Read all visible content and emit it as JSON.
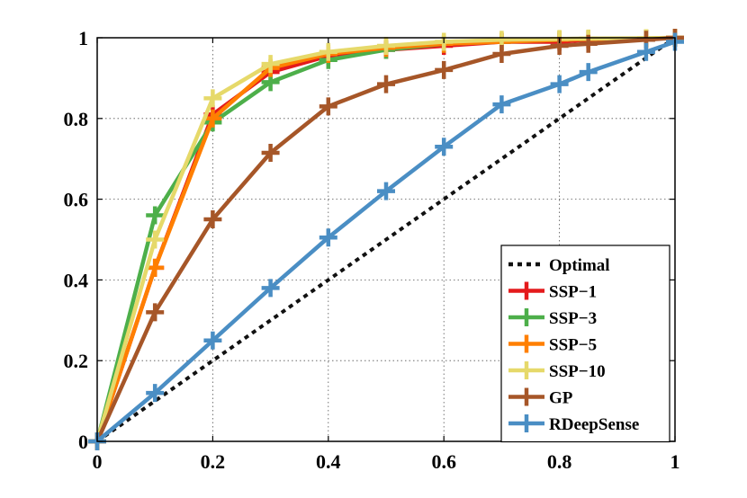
{
  "chart_data": {
    "type": "line",
    "title": "",
    "xlabel": "",
    "ylabel": "",
    "xlim": [
      0,
      1
    ],
    "ylim": [
      0,
      1
    ],
    "grid": true,
    "legend_position": "bottom-right",
    "x_ticks": [
      "0",
      "0.2",
      "0.4",
      "0.6",
      "0.8",
      "1"
    ],
    "y_ticks": [
      "0",
      "0.2",
      "0.4",
      "0.6",
      "0.8",
      "1"
    ],
    "x_tick_values": [
      0,
      0.2,
      0.4,
      0.6,
      0.8,
      1
    ],
    "y_tick_values": [
      0,
      0.2,
      0.4,
      0.6,
      0.8,
      1
    ],
    "series": [
      {
        "name": "Optimal",
        "color": "#111111",
        "style": "dotted",
        "marker": "none",
        "x": [
          0,
          1
        ],
        "y": [
          0,
          1
        ]
      },
      {
        "name": "SSP−1",
        "color": "#e41a1c",
        "style": "solid",
        "marker": "plus",
        "x": [
          0,
          0.1,
          0.2,
          0.3,
          0.4,
          0.5,
          0.6,
          0.7,
          0.8,
          0.85,
          0.95,
          1
        ],
        "y": [
          0,
          0.43,
          0.81,
          0.915,
          0.955,
          0.97,
          0.98,
          0.99,
          0.99,
          0.995,
          0.998,
          1
        ]
      },
      {
        "name": "SSP−3",
        "color": "#4daf4a",
        "style": "solid",
        "marker": "plus",
        "x": [
          0,
          0.1,
          0.2,
          0.3,
          0.4,
          0.5,
          0.6,
          0.7,
          0.8,
          0.85,
          0.95,
          1
        ],
        "y": [
          0,
          0.56,
          0.79,
          0.89,
          0.945,
          0.97,
          0.985,
          0.99,
          0.995,
          0.997,
          0.998,
          1
        ]
      },
      {
        "name": "SSP−5",
        "color": "#ff7f00",
        "style": "solid",
        "marker": "plus",
        "x": [
          0,
          0.1,
          0.2,
          0.3,
          0.4,
          0.5,
          0.6,
          0.7,
          0.8,
          0.85,
          0.95,
          1
        ],
        "y": [
          0,
          0.43,
          0.8,
          0.925,
          0.96,
          0.975,
          0.985,
          0.99,
          0.995,
          0.997,
          0.998,
          1
        ]
      },
      {
        "name": "SSP−10",
        "color": "#e6d96a",
        "style": "solid",
        "marker": "plus",
        "x": [
          0,
          0.1,
          0.2,
          0.3,
          0.4,
          0.5,
          0.6,
          0.7,
          0.8,
          0.85,
          0.95,
          1
        ],
        "y": [
          0,
          0.5,
          0.85,
          0.935,
          0.965,
          0.98,
          0.99,
          0.995,
          0.997,
          0.998,
          0.999,
          1
        ]
      },
      {
        "name": "GP",
        "color": "#a65628",
        "style": "solid",
        "marker": "plus",
        "x": [
          0,
          0.1,
          0.2,
          0.3,
          0.4,
          0.5,
          0.6,
          0.7,
          0.8,
          0.85,
          0.95,
          1
        ],
        "y": [
          0,
          0.32,
          0.55,
          0.715,
          0.83,
          0.885,
          0.92,
          0.96,
          0.98,
          0.985,
          0.995,
          1
        ]
      },
      {
        "name": "RDeepSense",
        "color": "#4a8ec4",
        "style": "solid",
        "marker": "plus",
        "x": [
          0,
          0.1,
          0.2,
          0.3,
          0.4,
          0.5,
          0.6,
          0.7,
          0.8,
          0.85,
          0.95,
          1
        ],
        "y": [
          0,
          0.12,
          0.25,
          0.38,
          0.505,
          0.62,
          0.73,
          0.835,
          0.885,
          0.915,
          0.965,
          0.99
        ]
      }
    ]
  }
}
